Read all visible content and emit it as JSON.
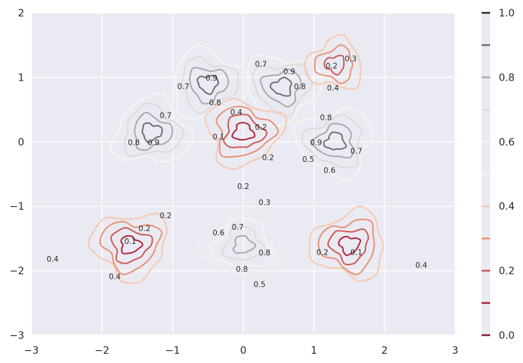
{
  "chart_data": {
    "type": "contour",
    "title": "",
    "xlabel": "",
    "ylabel": "",
    "xlim": [
      -3,
      3
    ],
    "ylim": [
      -3,
      2
    ],
    "x_ticks": [
      "−3",
      "−2",
      "−1",
      "0",
      "1",
      "2",
      "3"
    ],
    "y_ticks": [
      "−3",
      "−2",
      "−1",
      "0",
      "1",
      "2"
    ],
    "grid": true,
    "colorbar": {
      "ticks": [
        "0.0",
        "0.2",
        "0.4",
        "0.6",
        "0.8",
        "1.0"
      ],
      "range": [
        0,
        1
      ],
      "levels": [
        0.0,
        0.1,
        0.2,
        0.3,
        0.4,
        0.5,
        0.6,
        0.7,
        0.8,
        0.9,
        1.0
      ],
      "colors": [
        "#8e1b3a",
        "#b2233e",
        "#d05a55",
        "#ea9177",
        "#f7c8ae",
        "#f2f0f0",
        "#f5f5f5",
        "#dcdcdc",
        "#a9a9ad",
        "#6e6e73",
        "#2e2e33"
      ]
    },
    "series": [
      {
        "group": "gray",
        "center": [
          -1.3,
          0.15
        ],
        "levels": [
          0.6,
          0.7,
          0.8,
          0.9
        ],
        "labels": [
          {
            "text": "0.7",
            "x": -1.1,
            "y": 0.4
          },
          {
            "text": "0.8",
            "x": -1.55,
            "y": -0.02
          },
          {
            "text": "0.9",
            "x": -1.27,
            "y": -0.02
          }
        ]
      },
      {
        "group": "gray",
        "center": [
          -0.5,
          0.9
        ],
        "levels": [
          0.6,
          0.7,
          0.8,
          0.9
        ],
        "labels": [
          {
            "text": "0.7",
            "x": -0.85,
            "y": 0.85
          },
          {
            "text": "0.9",
            "x": -0.45,
            "y": 0.98
          },
          {
            "text": "0.8",
            "x": -0.4,
            "y": 0.6
          }
        ]
      },
      {
        "group": "gray",
        "center": [
          0.55,
          0.85
        ],
        "levels": [
          0.6,
          0.7,
          0.8,
          0.9
        ],
        "labels": [
          {
            "text": "0.7",
            "x": 0.25,
            "y": 1.2
          },
          {
            "text": "0.9",
            "x": 0.65,
            "y": 1.08
          },
          {
            "text": "0.8",
            "x": 0.8,
            "y": 0.85
          }
        ]
      },
      {
        "group": "gray",
        "center": [
          1.3,
          0.0
        ],
        "levels": [
          0.6,
          0.7,
          0.8,
          0.9
        ],
        "labels": [
          {
            "text": "0.8",
            "x": 1.17,
            "y": 0.37
          },
          {
            "text": "0.9",
            "x": 1.03,
            "y": -0.02
          },
          {
            "text": "0.7",
            "x": 1.6,
            "y": -0.15
          },
          {
            "text": "0.6",
            "x": 1.22,
            "y": -0.45
          },
          {
            "text": "0.5",
            "x": 0.92,
            "y": -0.28
          }
        ]
      },
      {
        "group": "gray",
        "center": [
          0.0,
          -1.6
        ],
        "levels": [
          0.5,
          0.6,
          0.7,
          0.8
        ],
        "labels": [
          {
            "text": "0.6",
            "x": -0.35,
            "y": -1.42
          },
          {
            "text": "0.7",
            "x": -0.08,
            "y": -1.33
          },
          {
            "text": "0.8",
            "x": 0.3,
            "y": -1.73
          },
          {
            "text": "0.8",
            "x": -0.02,
            "y": -1.98
          },
          {
            "text": "0.5",
            "x": 0.23,
            "y": -2.22
          }
        ]
      },
      {
        "group": "red",
        "center": [
          0.0,
          0.15
        ],
        "levels": [
          0.1,
          0.2,
          0.3,
          0.4
        ],
        "labels": [
          {
            "text": "0.4",
            "x": -0.1,
            "y": 0.45
          },
          {
            "text": "0.1",
            "x": -0.35,
            "y": 0.07
          },
          {
            "text": "0.2",
            "x": 0.25,
            "y": 0.22
          },
          {
            "text": "0.2",
            "x": 0.35,
            "y": -0.25
          },
          {
            "text": "0.2",
            "x": 0.0,
            "y": -0.7
          },
          {
            "text": "0.3",
            "x": 0.3,
            "y": -0.95
          }
        ]
      },
      {
        "group": "red",
        "center": [
          -1.6,
          -1.6
        ],
        "levels": [
          0.1,
          0.2,
          0.3,
          0.4
        ],
        "labels": [
          {
            "text": "0.2",
            "x": -1.1,
            "y": -1.15
          },
          {
            "text": "0.2",
            "x": -1.4,
            "y": -1.35
          },
          {
            "text": "0.1",
            "x": -1.6,
            "y": -1.55
          },
          {
            "text": "0.4",
            "x": -2.7,
            "y": -1.83
          },
          {
            "text": "0.4",
            "x": -1.82,
            "y": -2.1
          }
        ]
      },
      {
        "group": "red",
        "center": [
          1.5,
          -1.6
        ],
        "levels": [
          0.1,
          0.2,
          0.3,
          0.4
        ],
        "labels": [
          {
            "text": "0.2",
            "x": 1.12,
            "y": -1.72
          },
          {
            "text": "0.1",
            "x": 1.6,
            "y": -1.72
          },
          {
            "text": "0.4",
            "x": 2.52,
            "y": -1.92
          }
        ]
      },
      {
        "group": "red",
        "center": [
          1.3,
          1.2
        ],
        "levels": [
          0.2,
          0.3,
          0.4
        ],
        "labels": [
          {
            "text": "0.3",
            "x": 1.52,
            "y": 1.28
          },
          {
            "text": "0.2",
            "x": 1.25,
            "y": 1.17
          },
          {
            "text": "0.4",
            "x": 1.27,
            "y": 0.83
          }
        ]
      }
    ]
  }
}
